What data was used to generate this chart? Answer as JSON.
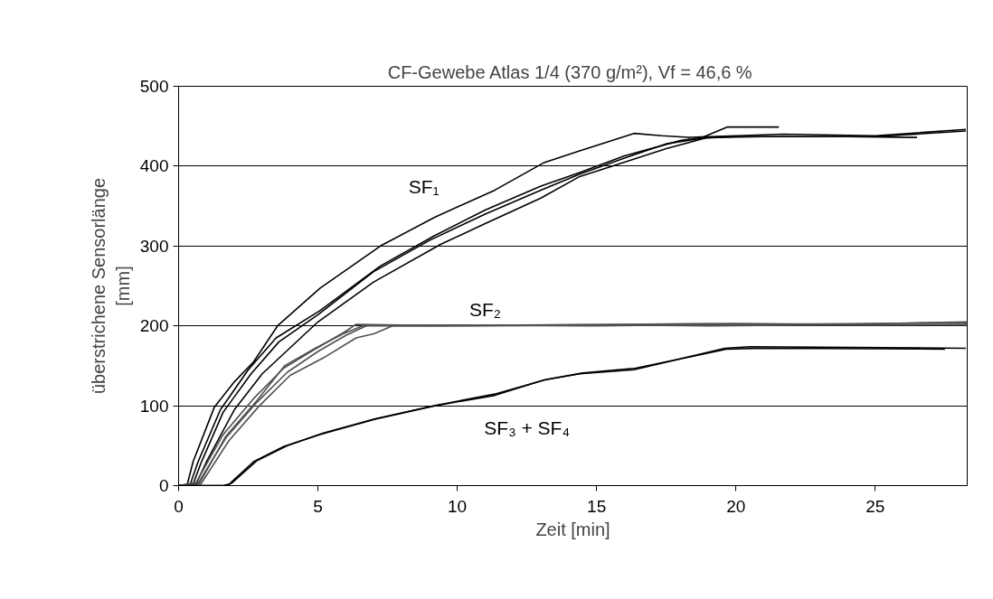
{
  "chart_data": {
    "type": "line",
    "title": "CF-Gewebe Atlas 1/4 (370 g/m²),  Vf = 46,6 %",
    "xlabel": "Zeit [min]",
    "ylabel": "überstrichene Sensorlänge\n[mm]",
    "xlim": [
      0,
      28.3
    ],
    "ylim": [
      0,
      500
    ],
    "xticks": [
      0,
      5,
      10,
      15,
      20,
      25
    ],
    "yticks": [
      0,
      100,
      200,
      300,
      400,
      500
    ],
    "grid": "y",
    "marker": "none",
    "line_style": "solid",
    "series": [
      {
        "color": "#000000",
        "x": [
          0,
          0.3,
          0.52,
          1.28,
          2.0,
          2.69,
          3.55,
          5.07,
          7.24,
          9.19,
          11.35,
          13.09,
          14.39,
          16.34,
          17.35,
          18.3,
          21.7,
          25,
          28.25
        ],
        "values": [
          0,
          0,
          30,
          98,
          130,
          155,
          200,
          247,
          300,
          336,
          370,
          404,
          419,
          441,
          438,
          436,
          440,
          438,
          446
        ]
      },
      {
        "color": "#000000",
        "x": [
          0,
          0.4,
          0.7,
          1.5,
          2.5,
          3.5,
          5.07,
          7.24,
          9.19,
          11,
          13,
          14.39,
          16,
          18,
          18.8,
          19.7,
          21.54
        ],
        "values": [
          0,
          0,
          30,
          95,
          145,
          185,
          219,
          275,
          313,
          345,
          375,
          392,
          413,
          432,
          436,
          449,
          449
        ]
      },
      {
        "color": "#000000",
        "x": [
          0,
          0.5,
          0.8,
          1.6,
          2.6,
          3.6,
          5,
          7,
          9,
          11,
          13,
          14.39,
          16,
          17.5,
          18.8,
          20,
          24,
          26.5
        ],
        "values": [
          0,
          0,
          28,
          92,
          140,
          180,
          214,
          268,
          307,
          340,
          370,
          390,
          410,
          428,
          435,
          437,
          437,
          436
        ]
      },
      {
        "color": "#000000",
        "x": [
          0,
          0.6,
          1.0,
          2,
          3,
          5,
          7,
          9.4,
          11,
          13,
          14.39,
          16,
          17.5,
          19,
          21,
          25,
          28.25
        ],
        "values": [
          0,
          0,
          30,
          95,
          140,
          205,
          255,
          302,
          328,
          360,
          387,
          405,
          422,
          436,
          437,
          437,
          444
        ]
      },
      {
        "color": "#505050",
        "x": [
          0,
          0.63,
          1.6,
          2.69,
          3.77,
          4.85,
          5.94,
          6.37,
          8,
          12,
          16,
          20,
          24,
          28.3
        ],
        "values": [
          0,
          4,
          64,
          109,
          147,
          170,
          192,
          202,
          201,
          201,
          202,
          203,
          202,
          205
        ]
      },
      {
        "color": "#505050",
        "x": [
          0,
          0.7,
          1.7,
          2.8,
          3.9,
          5.0,
          6.0,
          6.8,
          9,
          13,
          17,
          21,
          25,
          28.3
        ],
        "values": [
          0,
          3,
          60,
          104,
          142,
          168,
          188,
          201,
          200,
          201,
          202,
          202,
          203,
          204
        ]
      },
      {
        "color": "#505050",
        "x": [
          0,
          0.8,
          1.8,
          2.9,
          4.0,
          5.2,
          6.37,
          7.0,
          7.67,
          10,
          15,
          20,
          25,
          28.3
        ],
        "values": [
          0,
          2,
          56,
          100,
          138,
          160,
          185,
          190,
          200,
          201,
          200,
          202,
          201,
          201
        ]
      },
      {
        "color": "#505050",
        "x": [
          0,
          0.75,
          1.7,
          2.8,
          3.8,
          4.9,
          5.9,
          6.6,
          7.5,
          11,
          15,
          19,
          23,
          28.3
        ],
        "values": [
          0,
          3,
          62,
          106,
          150,
          172,
          190,
          200,
          200,
          200,
          201,
          200,
          201,
          202
        ]
      },
      {
        "color": "#000000",
        "x": [
          0,
          1.6,
          1.82,
          2.69,
          3.77,
          5.07,
          7.02,
          9.19,
          11.35,
          13.09,
          14.39,
          16.34,
          19.6,
          20.5,
          28.25
        ],
        "values": [
          0,
          0,
          2,
          30,
          49,
          64,
          83,
          100,
          113,
          132,
          140,
          145,
          172,
          174,
          172
        ]
      },
      {
        "color": "#000000",
        "x": [
          0,
          1.7,
          1.9,
          2.8,
          3.9,
          5.2,
          7.1,
          9.3,
          11.4,
          13.2,
          14.5,
          16.4,
          19.7,
          21,
          27.5
        ],
        "values": [
          0,
          0,
          3,
          31,
          50,
          66,
          84,
          101,
          115,
          133,
          141,
          147,
          171,
          172,
          171
        ]
      }
    ],
    "annotations": [
      "SF₁",
      "SF₂",
      "SF₃ + SF₄"
    ]
  }
}
